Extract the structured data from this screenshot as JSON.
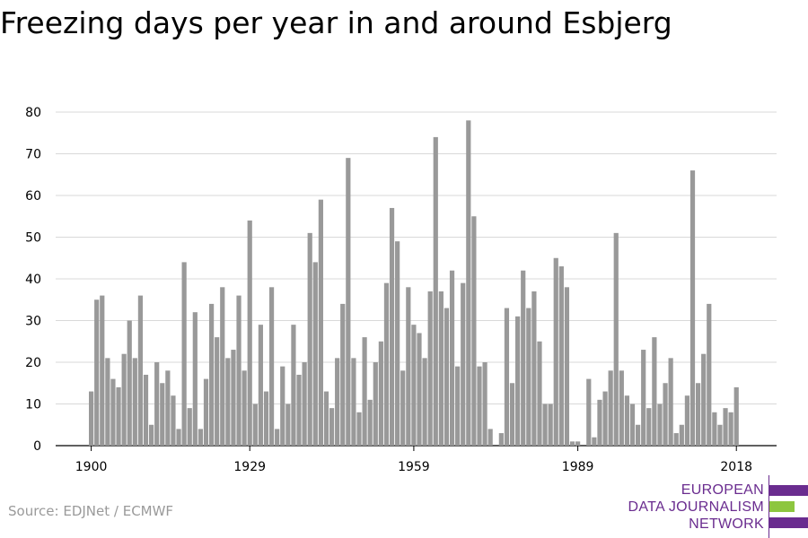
{
  "title": "Freezing days per year in and around Esbjerg",
  "source": "Source: EDJNet / ECMWF",
  "logo": {
    "lines": [
      "EUROPEAN",
      "DATA JOURNALISM",
      "NETWORK"
    ],
    "colors": {
      "purple": "#6a2c8f",
      "green": "#8dc63f"
    }
  },
  "chart_data": {
    "type": "bar",
    "x_start": 1900,
    "x_end": 2018,
    "values": [
      13,
      35,
      36,
      21,
      16,
      14,
      22,
      30,
      21,
      36,
      17,
      5,
      20,
      15,
      18,
      12,
      4,
      44,
      9,
      32,
      4,
      16,
      34,
      26,
      38,
      21,
      23,
      36,
      18,
      54,
      10,
      29,
      13,
      38,
      4,
      19,
      10,
      29,
      17,
      20,
      51,
      44,
      59,
      13,
      9,
      21,
      34,
      69,
      21,
      8,
      26,
      11,
      20,
      25,
      39,
      57,
      49,
      18,
      38,
      29,
      27,
      21,
      37,
      74,
      37,
      33,
      42,
      19,
      39,
      78,
      55,
      19,
      20,
      4,
      0,
      3,
      33,
      15,
      31,
      42,
      33,
      37,
      25,
      10,
      10,
      45,
      43,
      38,
      1,
      1,
      0,
      16,
      2,
      11,
      13,
      18,
      51,
      18,
      12,
      10,
      5,
      23,
      9,
      26,
      10,
      15,
      21,
      3,
      5,
      12,
      66,
      15,
      22,
      34,
      8,
      5,
      9,
      8,
      14
    ],
    "x_ticks": [
      "1900",
      "1929",
      "1959",
      "1989",
      "2018"
    ],
    "y_ticks": [
      "0",
      "10",
      "20",
      "30",
      "40",
      "50",
      "60",
      "70",
      "80"
    ],
    "ylim": [
      0,
      80
    ],
    "bar_color": "#999999",
    "grid": true
  }
}
